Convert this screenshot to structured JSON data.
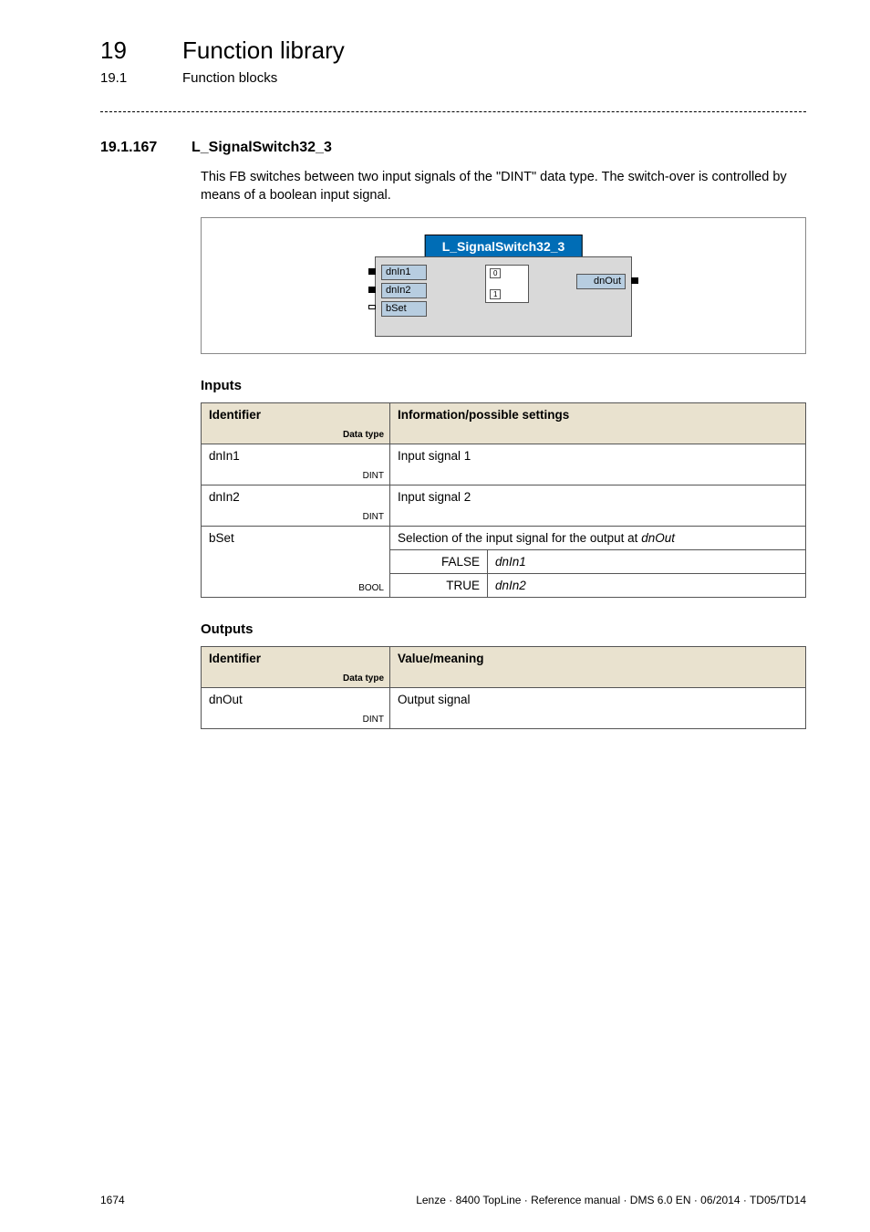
{
  "header": {
    "chapter_num": "19",
    "chapter_title": "Function library",
    "section_num": "19.1",
    "section_title": "Function blocks"
  },
  "section": {
    "num": "19.1.167",
    "title": "L_SignalSwitch32_3",
    "description": "This FB switches between two input signals of the \"DINT\" data type. The switch-over is controlled by means of a boolean input signal."
  },
  "diagram": {
    "fb_title": "L_SignalSwitch32_3",
    "in1": "dnIn1",
    "in2": "dnIn2",
    "in3": "bSet",
    "out": "dnOut",
    "sw0": "0",
    "sw1": "1"
  },
  "inputs_heading": "Inputs",
  "outputs_heading": "Outputs",
  "inputs_table": {
    "col_identifier": "Identifier",
    "col_datatype": "Data type",
    "col_info": "Information/possible settings",
    "rows": [
      {
        "id": "dnIn1",
        "type": "DINT",
        "info": "Input signal 1"
      },
      {
        "id": "dnIn2",
        "type": "DINT",
        "info": "Input signal 2"
      }
    ],
    "bset": {
      "id": "bSet",
      "type": "BOOL",
      "info": "Selection of the input signal for the output at ",
      "info_ref": "dnOut",
      "false_label": "FALSE",
      "false_val": "dnIn1",
      "true_label": "TRUE",
      "true_val": "dnIn2"
    }
  },
  "outputs_table": {
    "col_identifier": "Identifier",
    "col_datatype": "Data type",
    "col_value": "Value/meaning",
    "row": {
      "id": "dnOut",
      "type": "DINT",
      "info": "Output signal"
    }
  },
  "footer": {
    "page": "1674",
    "meta": "Lenze · 8400 TopLine · Reference manual · DMS 6.0 EN · 06/2014 · TD05/TD14"
  }
}
